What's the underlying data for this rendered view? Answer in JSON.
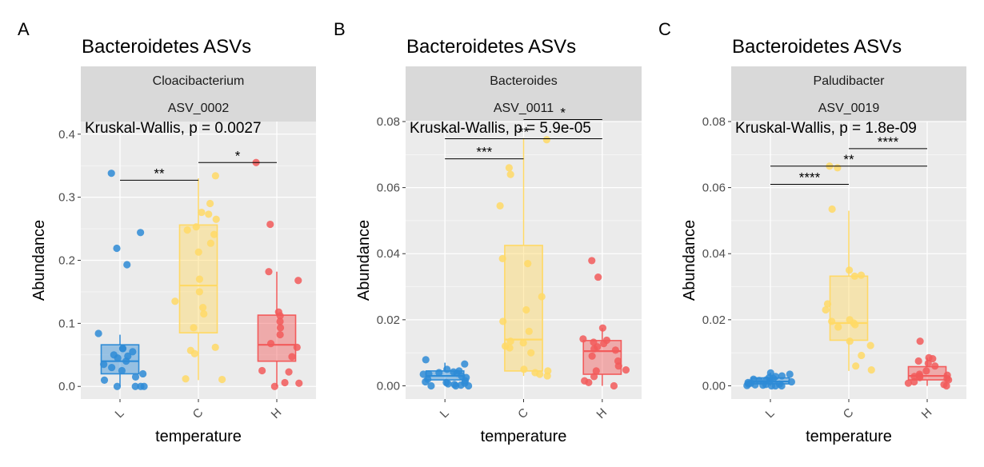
{
  "colors": {
    "L": "#2e8bd6",
    "C": "#ffd966",
    "H": "#f25b5b",
    "panel_bg": "#ebebeb",
    "strip_bg": "#d9d9d9",
    "grid": "#ffffff"
  },
  "chart_data": [
    {
      "type": "boxplot",
      "panel_letter": "A",
      "title": "Bacteroidetes ASVs",
      "strip": [
        "Cloacibacterium",
        "ASV_0002"
      ],
      "test": "Kruskal-Wallis, p = 0.0027",
      "xlabel": "temperature",
      "ylabel": "Abundance",
      "categories": [
        "L",
        "C",
        "H"
      ],
      "ylim": [
        -0.02,
        0.42
      ],
      "yticks": [
        0.0,
        0.1,
        0.2,
        0.3,
        0.4
      ],
      "ytick_labels": [
        "0.0",
        "0.1",
        "0.2",
        "0.3",
        "0.4"
      ],
      "boxes": [
        {
          "group": "L",
          "q1": 0.02,
          "median": 0.04,
          "q3": 0.066,
          "whisker_low": 0.0,
          "whisker_high": 0.082
        },
        {
          "group": "C",
          "q1": 0.085,
          "median": 0.16,
          "q3": 0.256,
          "whisker_low": 0.01,
          "whisker_high": 0.33
        },
        {
          "group": "H",
          "q1": 0.04,
          "median": 0.066,
          "q3": 0.113,
          "whisker_low": 0.0,
          "whisker_high": 0.182
        }
      ],
      "points": {
        "L": [
          0.244,
          0.084,
          0.06,
          0.05,
          0.045,
          0.04,
          0.035,
          0.03,
          0.025,
          0.02,
          0.015,
          0.01,
          0.0,
          0.0,
          0.0,
          0.0,
          0.219,
          0.193,
          0.338,
          0.055,
          0.06,
          0.048
        ],
        "C": [
          0.29,
          0.276,
          0.253,
          0.248,
          0.241,
          0.227,
          0.213,
          0.17,
          0.15,
          0.135,
          0.125,
          0.115,
          0.093,
          0.062,
          0.057,
          0.052,
          0.012,
          0.011,
          0.273,
          0.265,
          0.334
        ],
        "H": [
          0.355,
          0.257,
          0.182,
          0.168,
          0.118,
          0.112,
          0.103,
          0.093,
          0.082,
          0.068,
          0.062,
          0.047,
          0.025,
          0.023,
          0.006,
          0.005,
          0.0
        ]
      },
      "brackets": [
        {
          "from": "L",
          "to": "C",
          "y": 0.327,
          "label": "**"
        },
        {
          "from": "C",
          "to": "H",
          "y": 0.355,
          "label": "*"
        }
      ]
    },
    {
      "type": "boxplot",
      "panel_letter": "B",
      "title": "Bacteroidetes ASVs",
      "strip": [
        "Bacteroides",
        "ASV_0011"
      ],
      "test": "Kruskal-Wallis, p = 5.9e-05",
      "xlabel": "temperature",
      "ylabel": "Abundance",
      "categories": [
        "L",
        "C",
        "H"
      ],
      "ylim": [
        -0.004,
        0.08
      ],
      "yticks": [
        0.0,
        0.02,
        0.04,
        0.06,
        0.08
      ],
      "ytick_labels": [
        "0.00",
        "0.02",
        "0.04",
        "0.06",
        "0.08"
      ],
      "boxes": [
        {
          "group": "L",
          "q1": 0.0018,
          "median": 0.003,
          "q3": 0.0045,
          "whisker_low": 0.0,
          "whisker_high": 0.007
        },
        {
          "group": "C",
          "q1": 0.0045,
          "median": 0.014,
          "q3": 0.0425,
          "whisker_low": 0.003,
          "whisker_high": 0.075
        },
        {
          "group": "H",
          "q1": 0.0035,
          "median": 0.0105,
          "q3": 0.0137,
          "whisker_low": 0.0,
          "whisker_high": 0.0175
        }
      ],
      "points": {
        "L": [
          0.0079,
          0.0066,
          0.005,
          0.0045,
          0.004,
          0.0038,
          0.0035,
          0.003,
          0.0025,
          0.002,
          0.0015,
          0.0012,
          0.001,
          0.0008,
          0.0006,
          0.0004,
          0.0002,
          0.0,
          0.0,
          0.0,
          0.0042,
          0.0036
        ],
        "C": [
          0.0745,
          0.066,
          0.064,
          0.0545,
          0.0385,
          0.037,
          0.027,
          0.023,
          0.0195,
          0.0165,
          0.0135,
          0.013,
          0.012,
          0.0115,
          0.01,
          0.005,
          0.0045,
          0.004,
          0.0035,
          0.003
        ],
        "H": [
          0.0379,
          0.0329,
          0.0175,
          0.0142,
          0.0138,
          0.0132,
          0.0128,
          0.0118,
          0.0112,
          0.0108,
          0.009,
          0.0075,
          0.006,
          0.0048,
          0.0045,
          0.0028,
          0.0015,
          0.001,
          0.0
        ]
      },
      "brackets": [
        {
          "from": "L",
          "to": "C",
          "y": 0.0687,
          "label": "***"
        },
        {
          "from": "L",
          "to": "H",
          "y": 0.0748,
          "label": "**"
        },
        {
          "from": "C",
          "to": "H",
          "y": 0.0806,
          "label": "*"
        }
      ]
    },
    {
      "type": "boxplot",
      "panel_letter": "C",
      "title": "Bacteroidetes ASVs",
      "strip": [
        "Paludibacter",
        "ASV_0019"
      ],
      "test": "Kruskal-Wallis, p = 1.8e-09",
      "xlabel": "temperature",
      "ylabel": "Abundance",
      "categories": [
        "L",
        "C",
        "H"
      ],
      "ylim": [
        -0.004,
        0.08
      ],
      "yticks": [
        0.0,
        0.02,
        0.04,
        0.06,
        0.08
      ],
      "ytick_labels": [
        "0.00",
        "0.02",
        "0.04",
        "0.06",
        "0.08"
      ],
      "boxes": [
        {
          "group": "L",
          "q1": 0.0006,
          "median": 0.0013,
          "q3": 0.0024,
          "whisker_low": 0.0,
          "whisker_high": 0.004
        },
        {
          "group": "C",
          "q1": 0.0138,
          "median": 0.019,
          "q3": 0.0332,
          "whisker_low": 0.0045,
          "whisker_high": 0.053
        },
        {
          "group": "H",
          "q1": 0.0018,
          "median": 0.003,
          "q3": 0.0058,
          "whisker_low": 0.0,
          "whisker_high": 0.0085
        }
      ],
      "points": {
        "L": [
          0.0039,
          0.0035,
          0.003,
          0.0028,
          0.0025,
          0.0022,
          0.002,
          0.0018,
          0.0016,
          0.0014,
          0.0012,
          0.001,
          0.0008,
          0.0006,
          0.0005,
          0.0004,
          0.0003,
          0.0002,
          0.0001,
          0.0,
          0.0,
          0.0
        ],
        "C": [
          0.0665,
          0.066,
          0.0535,
          0.035,
          0.0335,
          0.0332,
          0.0248,
          0.023,
          0.02,
          0.0195,
          0.019,
          0.0185,
          0.0178,
          0.0135,
          0.0122,
          0.0092,
          0.006,
          0.0048
        ],
        "H": [
          0.0135,
          0.0085,
          0.0082,
          0.0075,
          0.0068,
          0.006,
          0.0045,
          0.0035,
          0.0032,
          0.003,
          0.0028,
          0.0025,
          0.0022,
          0.0018,
          0.0012,
          0.0008,
          0.0004,
          0.0
        ]
      },
      "brackets": [
        {
          "from": "L",
          "to": "C",
          "y": 0.061,
          "label": "****"
        },
        {
          "from": "L",
          "to": "H",
          "y": 0.0665,
          "label": "**"
        },
        {
          "from": "C",
          "to": "H",
          "y": 0.0718,
          "label": "****"
        }
      ]
    }
  ]
}
